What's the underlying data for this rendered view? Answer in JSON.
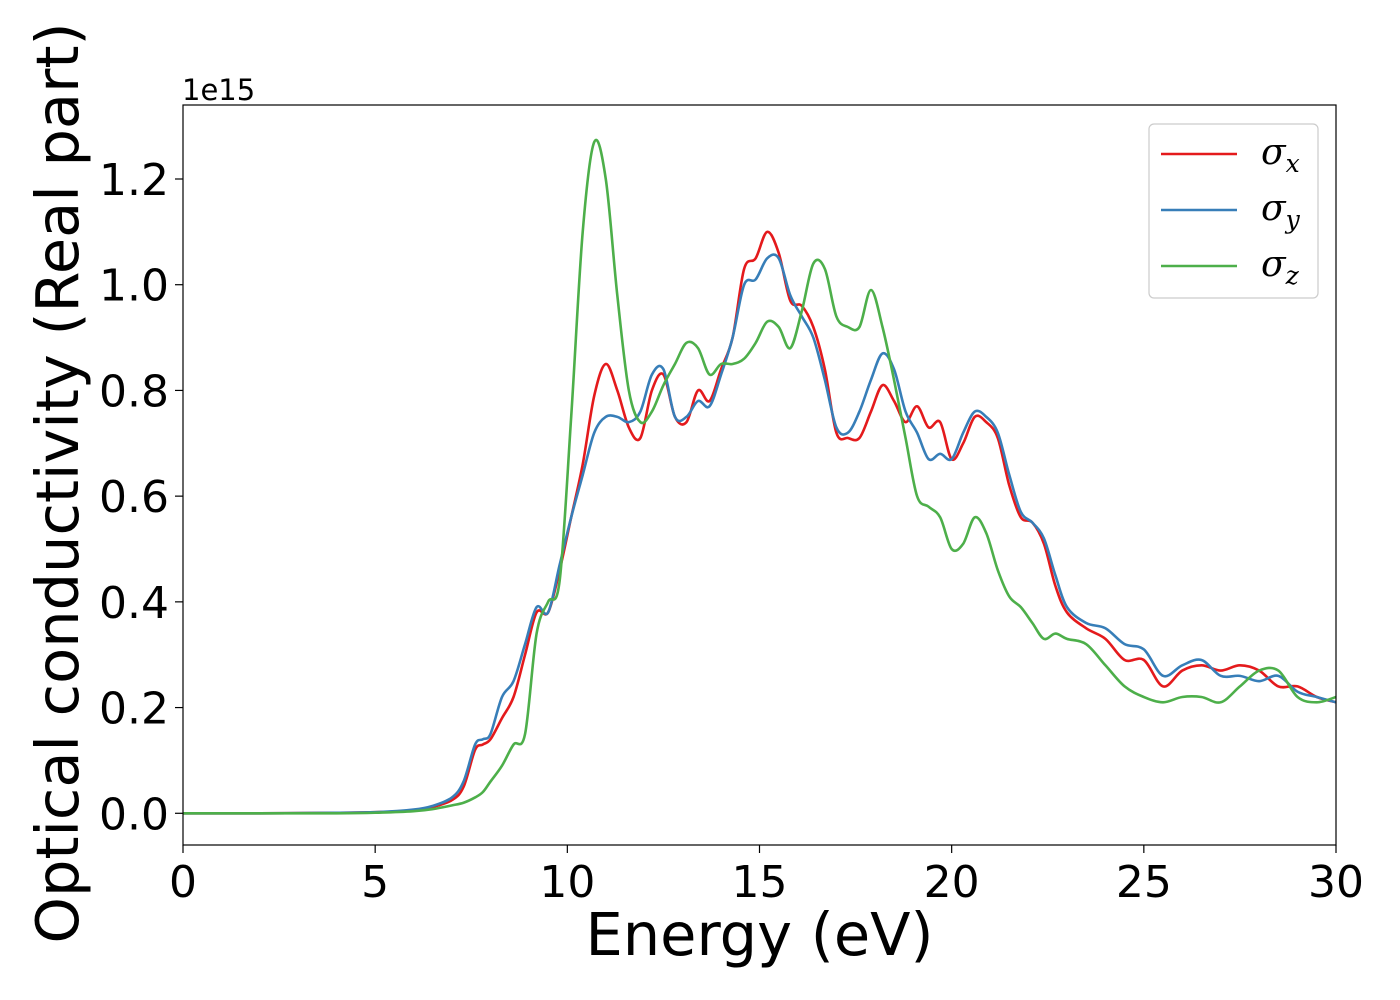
{
  "chart_data": {
    "type": "line",
    "xlabel": "Energy (eV)",
    "ylabel": "Optical conductivity (Real part)",
    "y_offset_label": "1e15",
    "xlim": [
      0,
      30
    ],
    "ylim": [
      -0.06,
      1.34
    ],
    "x_ticks": [
      0,
      5,
      10,
      15,
      20,
      25,
      30
    ],
    "x_tick_labels": [
      "0",
      "5",
      "10",
      "15",
      "20",
      "25",
      "30"
    ],
    "y_ticks": [
      0.0,
      0.2,
      0.4,
      0.6,
      0.8,
      1.0,
      1.2
    ],
    "y_tick_labels": [
      "0.0",
      "0.2",
      "0.4",
      "0.6",
      "0.8",
      "1.0",
      "1.2"
    ],
    "grid": false,
    "legend": "top-right",
    "series": [
      {
        "name": "σx",
        "symbol": "σ",
        "subscript": "x",
        "color": "#e41a1c",
        "x": [
          0,
          2,
          4,
          5,
          6,
          6.5,
          7,
          7.3,
          7.6,
          7.8,
          8.0,
          8.3,
          8.6,
          8.9,
          9.2,
          9.5,
          9.8,
          10.1,
          10.4,
          10.7,
          11.0,
          11.3,
          11.6,
          11.9,
          12.2,
          12.5,
          12.8,
          13.1,
          13.4,
          13.7,
          14.0,
          14.3,
          14.6,
          14.9,
          15.2,
          15.5,
          15.8,
          16.1,
          16.4,
          16.7,
          17.0,
          17.3,
          17.6,
          17.9,
          18.2,
          18.5,
          18.8,
          19.1,
          19.4,
          19.7,
          20.0,
          20.3,
          20.6,
          20.9,
          21.2,
          21.5,
          21.8,
          22.1,
          22.4,
          22.7,
          23.0,
          23.5,
          24.0,
          24.5,
          25.0,
          25.5,
          26.0,
          26.5,
          27.0,
          27.5,
          28.0,
          28.5,
          29.0,
          29.5,
          30.0
        ],
        "values": [
          0.0,
          0.0,
          0.001,
          0.002,
          0.006,
          0.012,
          0.025,
          0.05,
          0.12,
          0.13,
          0.14,
          0.18,
          0.22,
          0.3,
          0.38,
          0.38,
          0.46,
          0.56,
          0.66,
          0.79,
          0.85,
          0.8,
          0.73,
          0.71,
          0.8,
          0.83,
          0.75,
          0.74,
          0.8,
          0.78,
          0.84,
          0.9,
          1.03,
          1.05,
          1.1,
          1.06,
          0.97,
          0.96,
          0.92,
          0.84,
          0.72,
          0.71,
          0.71,
          0.76,
          0.81,
          0.78,
          0.74,
          0.77,
          0.73,
          0.74,
          0.67,
          0.7,
          0.75,
          0.74,
          0.71,
          0.62,
          0.56,
          0.55,
          0.51,
          0.43,
          0.38,
          0.35,
          0.33,
          0.29,
          0.29,
          0.24,
          0.27,
          0.28,
          0.27,
          0.28,
          0.27,
          0.24,
          0.24,
          0.22,
          0.21
        ]
      },
      {
        "name": "σy",
        "symbol": "σ",
        "subscript": "y",
        "color": "#377eb8",
        "x": [
          0,
          2,
          4,
          5,
          6,
          6.5,
          7,
          7.3,
          7.6,
          7.8,
          8.0,
          8.3,
          8.6,
          8.9,
          9.2,
          9.5,
          9.8,
          10.1,
          10.4,
          10.7,
          11.0,
          11.3,
          11.6,
          11.9,
          12.2,
          12.5,
          12.8,
          13.1,
          13.4,
          13.7,
          14.0,
          14.3,
          14.6,
          14.9,
          15.2,
          15.5,
          15.8,
          16.1,
          16.4,
          16.7,
          17.0,
          17.3,
          17.6,
          17.9,
          18.2,
          18.5,
          18.8,
          19.1,
          19.4,
          19.7,
          20.0,
          20.3,
          20.6,
          20.9,
          21.2,
          21.5,
          21.8,
          22.1,
          22.4,
          22.7,
          23.0,
          23.5,
          24.0,
          24.5,
          25.0,
          25.5,
          26.0,
          26.5,
          27.0,
          27.5,
          28.0,
          28.5,
          29.0,
          29.5,
          30.0
        ],
        "values": [
          0.0,
          0.0,
          0.001,
          0.002,
          0.007,
          0.014,
          0.03,
          0.06,
          0.13,
          0.14,
          0.15,
          0.22,
          0.25,
          0.32,
          0.39,
          0.38,
          0.47,
          0.56,
          0.64,
          0.72,
          0.75,
          0.75,
          0.74,
          0.76,
          0.83,
          0.84,
          0.75,
          0.75,
          0.78,
          0.77,
          0.83,
          0.9,
          1.0,
          1.01,
          1.05,
          1.05,
          0.98,
          0.94,
          0.9,
          0.82,
          0.73,
          0.72,
          0.76,
          0.82,
          0.87,
          0.84,
          0.76,
          0.72,
          0.67,
          0.68,
          0.67,
          0.72,
          0.76,
          0.75,
          0.72,
          0.64,
          0.57,
          0.55,
          0.52,
          0.45,
          0.39,
          0.36,
          0.35,
          0.32,
          0.31,
          0.26,
          0.28,
          0.29,
          0.26,
          0.26,
          0.25,
          0.26,
          0.23,
          0.22,
          0.21
        ]
      },
      {
        "name": "σz",
        "symbol": "σ",
        "subscript": "z",
        "color": "#4daf4a",
        "x": [
          0,
          2,
          4,
          5,
          6,
          6.5,
          7,
          7.3,
          7.6,
          7.8,
          8.0,
          8.3,
          8.6,
          8.9,
          9.2,
          9.5,
          9.8,
          10.1,
          10.4,
          10.7,
          11.0,
          11.3,
          11.6,
          11.9,
          12.2,
          12.5,
          12.8,
          13.1,
          13.4,
          13.7,
          14.0,
          14.3,
          14.6,
          14.9,
          15.2,
          15.5,
          15.8,
          16.1,
          16.4,
          16.7,
          17.0,
          17.3,
          17.6,
          17.9,
          18.2,
          18.5,
          18.8,
          19.1,
          19.4,
          19.7,
          20.0,
          20.3,
          20.6,
          20.9,
          21.2,
          21.5,
          21.8,
          22.1,
          22.4,
          22.7,
          23.0,
          23.5,
          24.0,
          24.5,
          25.0,
          25.5,
          26.0,
          26.5,
          27.0,
          27.5,
          28.0,
          28.5,
          29.0,
          29.5,
          30.0
        ],
        "values": [
          0.0,
          0.0,
          0.0,
          0.001,
          0.004,
          0.008,
          0.015,
          0.02,
          0.03,
          0.04,
          0.06,
          0.09,
          0.13,
          0.15,
          0.34,
          0.4,
          0.44,
          0.75,
          1.1,
          1.27,
          1.2,
          0.98,
          0.8,
          0.74,
          0.76,
          0.81,
          0.85,
          0.89,
          0.88,
          0.83,
          0.85,
          0.85,
          0.86,
          0.89,
          0.93,
          0.92,
          0.88,
          0.95,
          1.04,
          1.03,
          0.94,
          0.92,
          0.92,
          0.99,
          0.92,
          0.82,
          0.71,
          0.6,
          0.58,
          0.56,
          0.5,
          0.51,
          0.56,
          0.53,
          0.46,
          0.41,
          0.39,
          0.36,
          0.33,
          0.34,
          0.33,
          0.32,
          0.28,
          0.24,
          0.22,
          0.21,
          0.22,
          0.22,
          0.21,
          0.24,
          0.27,
          0.27,
          0.22,
          0.21,
          0.22
        ]
      }
    ]
  }
}
